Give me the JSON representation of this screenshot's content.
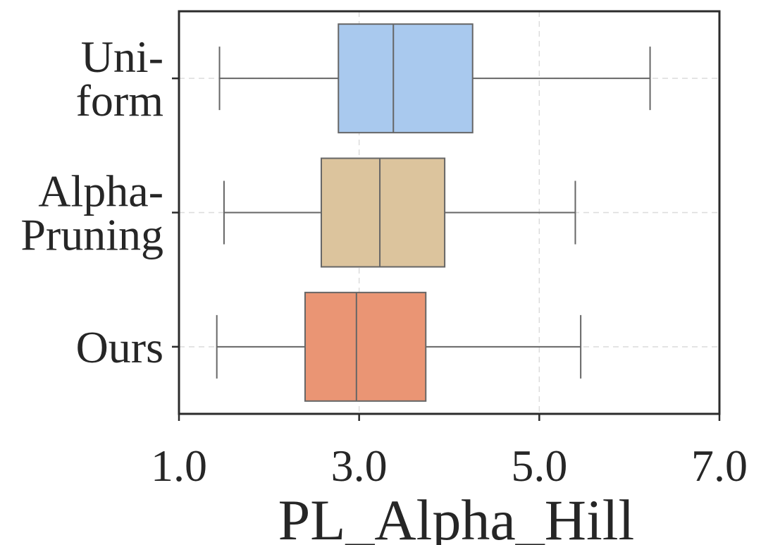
{
  "chart_data": {
    "type": "boxplot",
    "orientation": "horizontal",
    "xlabel": "PL_Alpha_Hill",
    "ylabel": "",
    "xlim": [
      1.0,
      7.0
    ],
    "xticks": [
      1.0,
      3.0,
      5.0,
      7.0
    ],
    "xtick_labels": [
      "1.0",
      "3.0",
      "5.0",
      "7.0"
    ],
    "grid": true,
    "categories": [
      "Uni-\nform",
      "Alpha-\nPruning",
      "Ours"
    ],
    "series": [
      {
        "category": "Uni-\nform",
        "whisker_low": 1.45,
        "q1": 2.77,
        "median": 3.38,
        "q3": 4.26,
        "whisker_high": 6.23,
        "color": "#a9c9ee"
      },
      {
        "category": "Alpha-\nPruning",
        "whisker_low": 1.5,
        "q1": 2.58,
        "median": 3.23,
        "q3": 3.95,
        "whisker_high": 5.4,
        "color": "#dcc49d"
      },
      {
        "category": "Ours",
        "whisker_low": 1.42,
        "q1": 2.4,
        "median": 2.97,
        "q3": 3.74,
        "whisker_high": 5.46,
        "color": "#ea9574"
      }
    ]
  }
}
